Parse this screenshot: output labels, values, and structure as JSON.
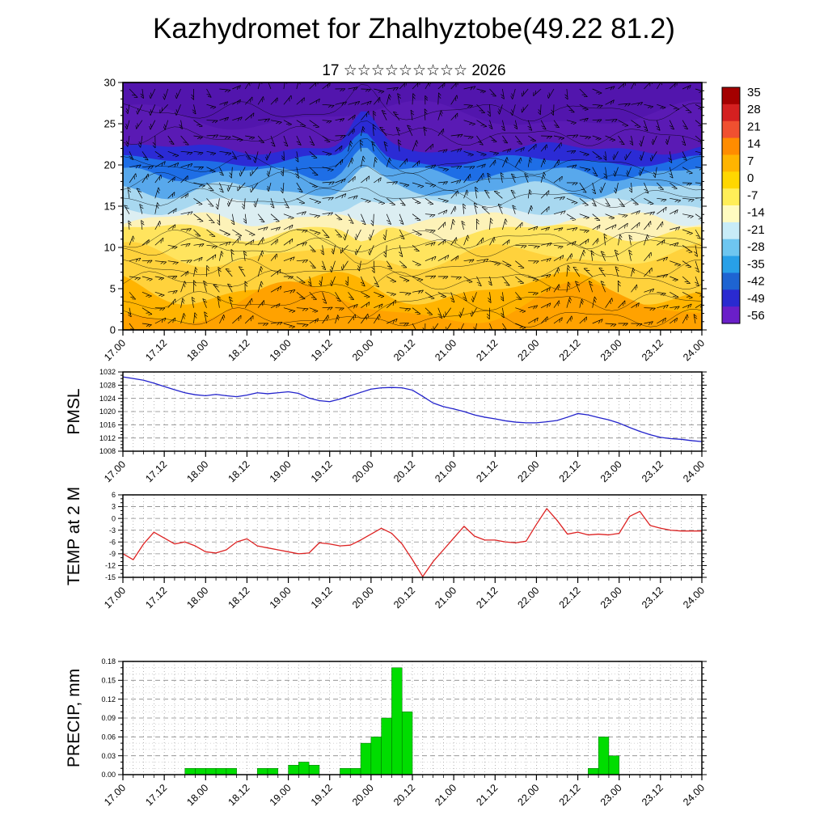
{
  "page": {
    "title": "Kazhydromet for Zhalhyztobe(49.22 81.2)",
    "subtitle": "17 ☆☆☆☆☆☆☆☆☆ 2026"
  },
  "panels": {
    "pmsl": {
      "label": "PMSL"
    },
    "temp": {
      "label": "TEMP at 2 M"
    },
    "precip": {
      "label": "PRECIP, mm"
    }
  },
  "time_axis": {
    "labels": [
      "17.00",
      "17.12",
      "18.00",
      "18.12",
      "19.00",
      "19.12",
      "20.00",
      "20.12",
      "21.00",
      "21.12",
      "22.00",
      "22.12",
      "23.00",
      "23.12",
      "24.00"
    ],
    "steps_per_label": 4,
    "n_steps": 56,
    "step_hours": 3
  },
  "chart_data": [
    {
      "type": "heatmap",
      "name": "temperature-height-cross-section-with-wind-barbs",
      "ylim": [
        0,
        30
      ],
      "yticks": [
        0,
        5,
        10,
        15,
        20,
        25,
        30
      ],
      "tick_major": 5,
      "tick_minor": 1,
      "x_labels_ref": "time_axis",
      "overlay": "wind-barbs",
      "color_bands": [
        {
          "y_from": 0,
          "y_to": 3,
          "color": "#ffa200"
        },
        {
          "y_from": 0,
          "y_to": 5,
          "color": "#ffb400"
        },
        {
          "y_from": 5,
          "y_to": 9,
          "color": "#ffd23c"
        },
        {
          "y_from": 9,
          "y_to": 12,
          "color": "#ffe45e"
        },
        {
          "y_from": 12,
          "y_to": 13.5,
          "color": "#fdf2b8"
        },
        {
          "y_from": 13.5,
          "y_to": 15,
          "color": "#dceef2"
        },
        {
          "y_from": 15,
          "y_to": 17,
          "color": "#a8d8f0"
        },
        {
          "y_from": 17,
          "y_to": 19,
          "color": "#58a8ec"
        },
        {
          "y_from": 19,
          "y_to": 20.5,
          "color": "#1e6ee6"
        },
        {
          "y_from": 20.5,
          "y_to": 22,
          "color": "#2b2bd5"
        },
        {
          "y_from": 22,
          "y_to": 30,
          "color": "#5a1ab4"
        }
      ],
      "colorbar": {
        "tick_labels": [
          35,
          28,
          21,
          14,
          7,
          0,
          -7,
          -14,
          -21,
          -28,
          -35,
          -42,
          -49,
          -56
        ],
        "colors": [
          "#a40000",
          "#d42020",
          "#f05030",
          "#ff8c00",
          "#ffb400",
          "#ffd700",
          "#ffee58",
          "#fffbc0",
          "#c8ecf8",
          "#6ec6f0",
          "#28a0e8",
          "#1e64d2",
          "#2a2ad0",
          "#6a1fc8"
        ]
      }
    },
    {
      "type": "line",
      "name": "PMSL",
      "color": "#2222cc",
      "ylim": [
        1008,
        1032
      ],
      "yticks": [
        1008,
        1012,
        1016,
        1020,
        1024,
        1028,
        1032
      ],
      "tick_major": 4,
      "tick_minor": 1,
      "value_format": "int",
      "x_labels_ref": "time_axis",
      "values": [
        1030.5,
        1030,
        1029.5,
        1028.6,
        1027.6,
        1026.6,
        1025.7,
        1025.1,
        1024.8,
        1025.2,
        1024.8,
        1024.5,
        1025,
        1025.7,
        1025.4,
        1025.7,
        1026,
        1025.5,
        1024.1,
        1023.3,
        1023,
        1023.8,
        1024.8,
        1025.8,
        1026.8,
        1027.2,
        1027.3,
        1027.2,
        1026.5,
        1024.6,
        1022.6,
        1021.5,
        1020.8,
        1020,
        1019,
        1018.3,
        1017.8,
        1017.2,
        1016.8,
        1016.6,
        1016.6,
        1016.9,
        1017.3,
        1018.3,
        1019.4,
        1019,
        1018.2,
        1017.5,
        1016.5,
        1015.2,
        1014,
        1013,
        1012.2,
        1011.8,
        1011.6,
        1011.2,
        1010.9
      ]
    },
    {
      "type": "line",
      "name": "TEMP at 2 M",
      "color": "#dd2222",
      "ylim": [
        -15,
        6
      ],
      "yticks": [
        -15,
        -12,
        -9,
        -6,
        -3,
        0,
        3,
        6
      ],
      "tick_major": 3,
      "tick_minor": 1,
      "value_format": "int",
      "x_labels_ref": "time_axis",
      "values": [
        -9,
        -10.5,
        -6.5,
        -3.5,
        -5,
        -6.5,
        -6,
        -7,
        -8.5,
        -8.8,
        -8,
        -6,
        -5.2,
        -7,
        -7.5,
        -8,
        -8.5,
        -9,
        -8.8,
        -6.2,
        -6.5,
        -7,
        -6.8,
        -5.5,
        -4,
        -2.5,
        -3.8,
        -6.5,
        -10.5,
        -14.8,
        -11,
        -8,
        -5,
        -2,
        -4.5,
        -5.5,
        -5.5,
        -6,
        -6.2,
        -5.8,
        -1.5,
        2.5,
        -0.5,
        -4,
        -3.5,
        -4.2,
        -4,
        -4.2,
        -3.8,
        0.5,
        1.8,
        -1.8,
        -2.5,
        -3,
        -3.2,
        -3.2,
        -3.2
      ]
    },
    {
      "type": "bar",
      "name": "PRECIP, mm",
      "color": "#00dd00",
      "ylim": [
        0,
        0.18
      ],
      "yticks": [
        0,
        0.03,
        0.06,
        0.09,
        0.12,
        0.15,
        0.18
      ],
      "tick_major": 0.03,
      "tick_minor": 0.01,
      "value_format": "2dp",
      "x_labels_ref": "time_axis",
      "values": [
        0,
        0,
        0,
        0,
        0,
        0,
        0.01,
        0.01,
        0.01,
        0.01,
        0.01,
        0,
        0,
        0.01,
        0.01,
        0,
        0.015,
        0.02,
        0.015,
        0,
        0,
        0.01,
        0.01,
        0.05,
        0.06,
        0.09,
        0.17,
        0.1,
        0,
        0,
        0,
        0,
        0,
        0,
        0,
        0,
        0,
        0,
        0,
        0,
        0,
        0,
        0,
        0,
        0,
        0.01,
        0.06,
        0.03,
        0,
        0,
        0,
        0,
        0,
        0,
        0,
        0
      ]
    }
  ]
}
